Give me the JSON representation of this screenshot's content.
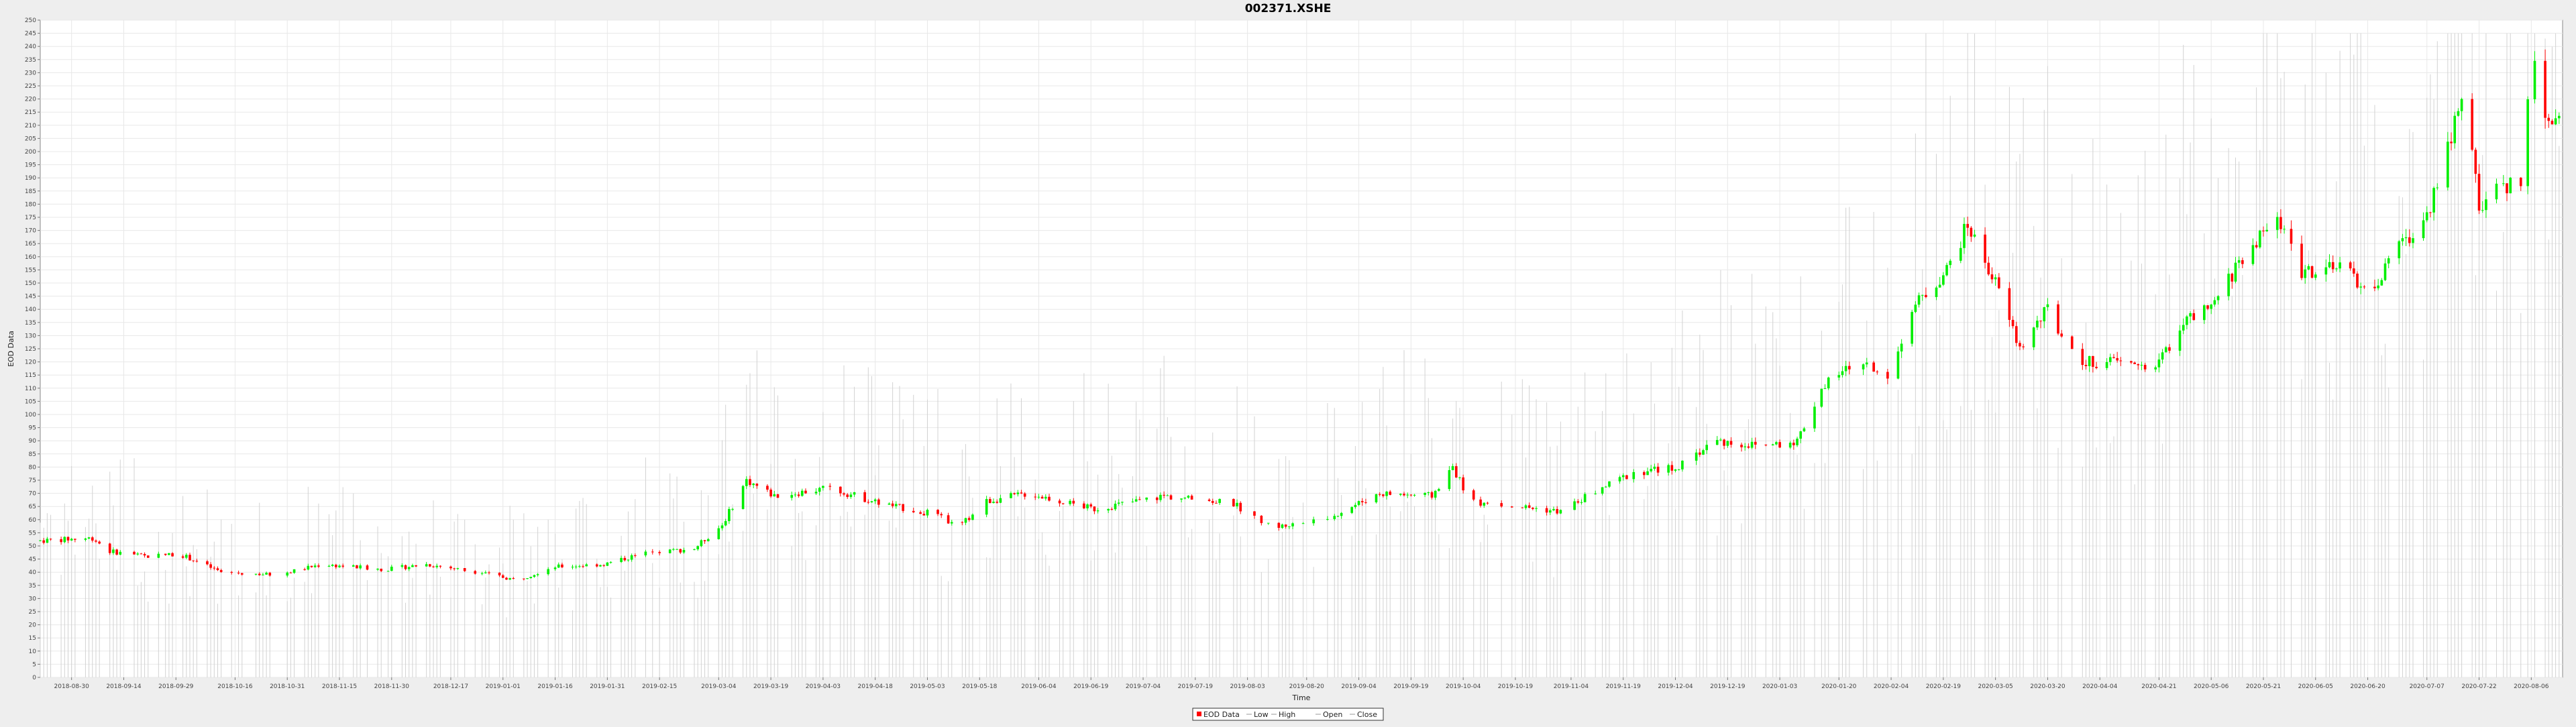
{
  "chart_data": {
    "type": "candlestick",
    "title": "002371.XSHE",
    "xlabel": "Time",
    "ylabel": "EOD Data",
    "ylim": [
      0,
      250
    ],
    "y_ticks": [
      0,
      5,
      10,
      15,
      20,
      25,
      30,
      35,
      40,
      45,
      50,
      55,
      60,
      65,
      70,
      75,
      80,
      85,
      90,
      95,
      100,
      105,
      110,
      115,
      120,
      125,
      130,
      135,
      140,
      145,
      150,
      155,
      160,
      165,
      170,
      175,
      180,
      185,
      190,
      195,
      200,
      205,
      210,
      215,
      220,
      225,
      230,
      235,
      240,
      245,
      250
    ],
    "x_range": [
      "2018-08-21",
      "2020-08-15"
    ],
    "x_ticks": [
      "2018-08-30",
      "2018-09-14",
      "2018-09-29",
      "2018-10-16",
      "2018-10-31",
      "2018-11-15",
      "2018-11-30",
      "2018-12-17",
      "2019-01-01",
      "2019-01-16",
      "2019-01-31",
      "2019-02-15",
      "2019-03-04",
      "2019-03-19",
      "2019-04-03",
      "2019-04-18",
      "2019-05-03",
      "2019-05-18",
      "2019-06-04",
      "2019-06-19",
      "2019-07-04",
      "2019-07-19",
      "2019-08-03",
      "2019-08-20",
      "2019-09-04",
      "2019-09-19",
      "2019-10-04",
      "2019-10-19",
      "2019-11-04",
      "2019-11-19",
      "2019-12-04",
      "2019-12-19",
      "2020-01-03",
      "2020-01-20",
      "2020-02-04",
      "2020-02-19",
      "2020-03-05",
      "2020-03-20",
      "2020-04-04",
      "2020-04-21",
      "2020-05-06",
      "2020-05-21",
      "2020-06-05",
      "2020-06-20",
      "2020-07-07",
      "2020-07-22",
      "2020-08-06"
    ],
    "grid": true,
    "legend": {
      "position": "bottom-center",
      "entries": [
        {
          "name": "EOD Data",
          "color": "#ff0000"
        },
        {
          "name": "Low",
          "color": "#999999"
        },
        {
          "name": "High",
          "color": "#999999"
        },
        {
          "name": "Open",
          "color": "#999999"
        },
        {
          "name": "Close",
          "color": "#999999"
        }
      ]
    },
    "colors": {
      "up": "#00ee00",
      "down": "#ff0000",
      "volume": "#cccccc"
    },
    "anchors": [
      [
        "2018-08-21",
        52
      ],
      [
        "2018-09-05",
        53
      ],
      [
        "2018-09-10",
        48
      ],
      [
        "2018-09-20",
        46
      ],
      [
        "2018-09-30",
        47
      ],
      [
        "2018-10-12",
        40
      ],
      [
        "2018-10-28",
        39
      ],
      [
        "2018-11-10",
        43
      ],
      [
        "2018-11-28",
        41
      ],
      [
        "2018-12-10",
        43
      ],
      [
        "2018-12-25",
        40
      ],
      [
        "2019-01-05",
        37
      ],
      [
        "2019-01-15",
        42
      ],
      [
        "2019-01-30",
        43
      ],
      [
        "2019-02-10",
        47
      ],
      [
        "2019-02-25",
        49
      ],
      [
        "2019-03-05",
        58
      ],
      [
        "2019-03-12",
        75
      ],
      [
        "2019-03-20",
        69
      ],
      [
        "2019-04-05",
        72
      ],
      [
        "2019-04-20",
        66
      ],
      [
        "2019-05-05",
        62
      ],
      [
        "2019-05-12",
        57
      ],
      [
        "2019-05-20",
        67
      ],
      [
        "2019-06-01",
        70
      ],
      [
        "2019-06-20",
        64
      ],
      [
        "2019-07-10",
        69
      ],
      [
        "2019-07-30",
        66
      ],
      [
        "2019-08-10",
        57
      ],
      [
        "2019-08-25",
        60
      ],
      [
        "2019-09-10",
        70
      ],
      [
        "2019-09-25",
        69
      ],
      [
        "2019-10-01",
        80
      ],
      [
        "2019-10-06",
        67
      ],
      [
        "2019-10-20",
        65
      ],
      [
        "2019-11-01",
        63
      ],
      [
        "2019-11-10",
        70
      ],
      [
        "2019-11-22",
        78
      ],
      [
        "2019-12-05",
        80
      ],
      [
        "2019-12-15",
        90
      ],
      [
        "2019-12-28",
        88
      ],
      [
        "2020-01-08",
        90
      ],
      [
        "2020-01-15",
        110
      ],
      [
        "2020-01-25",
        120
      ],
      [
        "2020-02-03",
        115
      ],
      [
        "2020-02-10",
        140
      ],
      [
        "2020-02-20",
        155
      ],
      [
        "2020-02-26",
        172
      ],
      [
        "2020-03-05",
        150
      ],
      [
        "2020-03-12",
        125
      ],
      [
        "2020-03-20",
        140
      ],
      [
        "2020-03-28",
        120
      ],
      [
        "2020-04-08",
        120
      ],
      [
        "2020-04-20",
        118
      ],
      [
        "2020-04-28",
        135
      ],
      [
        "2020-05-06",
        140
      ],
      [
        "2020-05-15",
        160
      ],
      [
        "2020-05-25",
        175
      ],
      [
        "2020-06-01",
        155
      ],
      [
        "2020-06-15",
        155
      ],
      [
        "2020-06-20",
        145
      ],
      [
        "2020-06-30",
        165
      ],
      [
        "2020-07-07",
        175
      ],
      [
        "2020-07-12",
        200
      ],
      [
        "2020-07-18",
        220
      ],
      [
        "2020-07-22",
        180
      ],
      [
        "2020-07-28",
        185
      ],
      [
        "2020-08-03",
        190
      ],
      [
        "2020-08-06",
        235
      ],
      [
        "2020-08-10",
        215
      ],
      [
        "2020-08-15",
        210
      ]
    ]
  }
}
